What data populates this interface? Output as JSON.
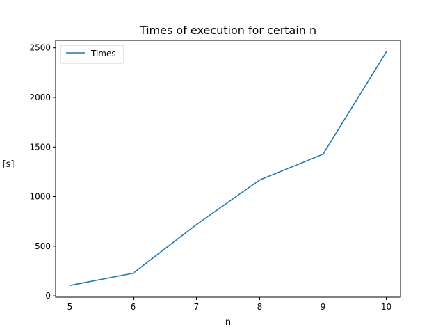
{
  "chart_data": {
    "type": "line",
    "title": "Times of execution for certain n",
    "xlabel": "n",
    "ylabel": "[s]",
    "x": [
      5,
      6,
      7,
      8,
      9,
      10
    ],
    "series": [
      {
        "name": "Times",
        "values": [
          105,
          228,
          718,
          1168,
          1427,
          2458
        ],
        "color": "#1f77b4"
      }
    ],
    "xlim": [
      4.775,
      10.225
    ],
    "ylim": [
      -13,
      2575
    ],
    "xticks": [
      "5",
      "6",
      "7",
      "8",
      "9",
      "10"
    ],
    "yticks": [
      "0",
      "500",
      "1000",
      "1500",
      "2000",
      "2500"
    ],
    "grid": false,
    "legend": "top-left"
  }
}
